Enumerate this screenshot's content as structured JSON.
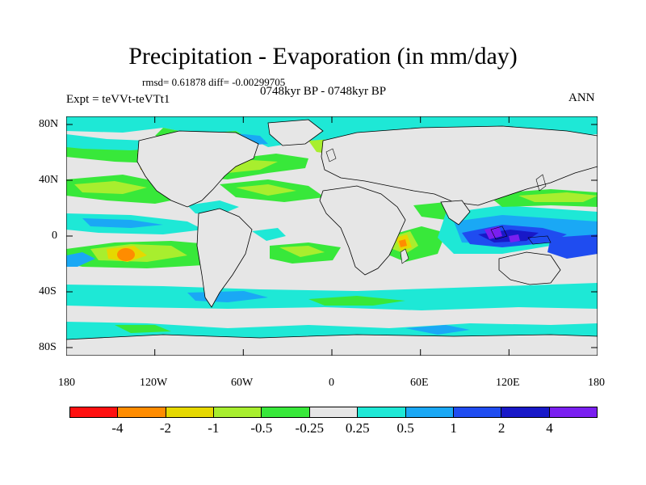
{
  "title": "Precipitation - Evaporation (in mm/day)",
  "stats": "rmsd= 0.61878 diff= -0.00299705",
  "period": "0748kyr BP - 0748kyr BP",
  "experiment": "Expt = teVVt-teVTt1",
  "season": "ANN",
  "lat_labels": [
    "80N",
    "40N",
    "0",
    "40S",
    "80S"
  ],
  "lon_labels": [
    "180",
    "120W",
    "60W",
    "0",
    "60E",
    "120E",
    "180"
  ],
  "colorbar": {
    "labels": [
      "-4",
      "-2",
      "-1",
      "-0.5",
      "-0.25",
      "0.25",
      "0.5",
      "1",
      "2",
      "4"
    ],
    "colors": [
      "#ff1010",
      "#ff8c00",
      "#e6d800",
      "#a8ee2e",
      "#38e83a",
      "#e6e6e6",
      "#1ee8d6",
      "#1aa8f5",
      "#1f4cf0",
      "#1818c8",
      "#7a1ff0"
    ]
  },
  "map_colors": {
    "land": "#e6e6e6",
    "ocean_neutral": "#e6e6e6",
    "coast": "#000000"
  }
}
